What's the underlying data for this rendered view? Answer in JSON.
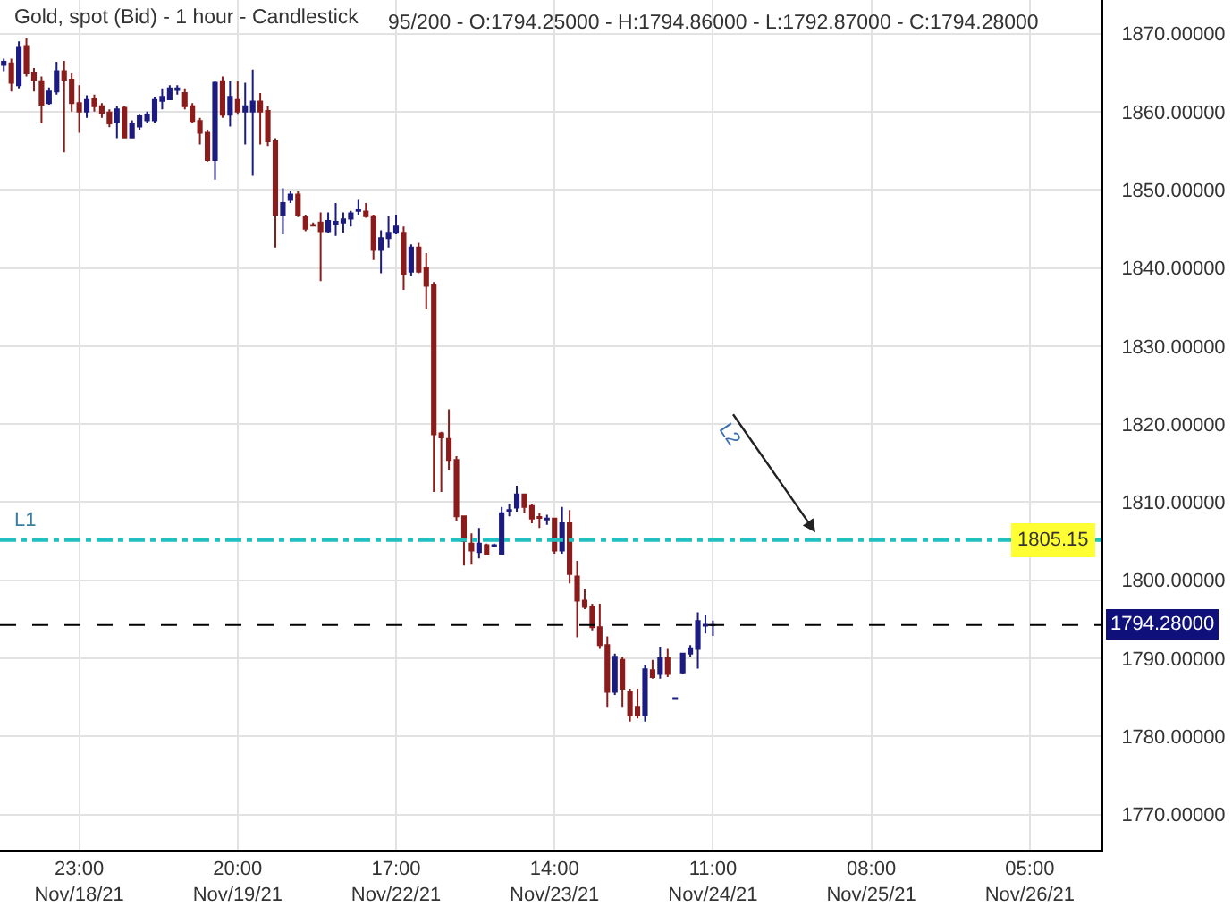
{
  "chart_data": {
    "type": "candlestick",
    "title": "Gold, spot (Bid) - 1 hour - Candlestick",
    "subtitle": "95/200 - O:1794.25000 - H:1794.86000 - L:1792.87000 - C:1794.28000",
    "ohlc": [
      [
        1866.0,
        1866.8,
        1865.2,
        1866.4
      ],
      [
        1866.2,
        1866.8,
        1862.6,
        1863.7
      ],
      [
        1863.4,
        1869.0,
        1863.0,
        1868.3
      ],
      [
        1868.4,
        1869.4,
        1864.5,
        1864.9
      ],
      [
        1864.9,
        1865.6,
        1862.6,
        1864.1
      ],
      [
        1863.9,
        1864.5,
        1858.5,
        1860.9
      ],
      [
        1861.1,
        1863.1,
        1860.9,
        1862.6
      ],
      [
        1862.6,
        1866.4,
        1862.2,
        1865.2
      ],
      [
        1865.2,
        1866.5,
        1854.8,
        1864.1
      ],
      [
        1864.1,
        1864.9,
        1860.0,
        1861.1
      ],
      [
        1861.1,
        1863.4,
        1857.3,
        1860.0
      ],
      [
        1860.0,
        1862.1,
        1859.2,
        1861.5
      ],
      [
        1861.6,
        1862.2,
        1860.0,
        1860.7
      ],
      [
        1860.7,
        1861.1,
        1859.2,
        1859.8
      ],
      [
        1859.9,
        1860.3,
        1858.0,
        1858.5
      ],
      [
        1858.6,
        1860.7,
        1856.6,
        1860.3
      ],
      [
        1860.5,
        1860.7,
        1856.6,
        1856.7
      ],
      [
        1856.7,
        1858.9,
        1856.6,
        1858.5
      ],
      [
        1858.1,
        1859.6,
        1857.7,
        1859.4
      ],
      [
        1858.9,
        1860.0,
        1858.5,
        1859.6
      ],
      [
        1858.9,
        1861.9,
        1858.6,
        1861.5
      ],
      [
        1861.4,
        1863.0,
        1860.3,
        1861.9
      ],
      [
        1861.6,
        1863.4,
        1861.5,
        1863.0
      ],
      [
        1862.8,
        1863.4,
        1862.2,
        1863.0
      ],
      [
        1862.4,
        1863.0,
        1860.3,
        1860.7
      ],
      [
        1860.7,
        1861.1,
        1858.5,
        1858.8
      ],
      [
        1858.8,
        1859.2,
        1855.8,
        1857.3
      ],
      [
        1857.3,
        1857.7,
        1853.6,
        1853.8
      ],
      [
        1853.8,
        1863.9,
        1851.3,
        1863.7
      ],
      [
        1863.9,
        1864.5,
        1859.2,
        1859.6
      ],
      [
        1859.6,
        1863.9,
        1858.1,
        1861.9
      ],
      [
        1861.5,
        1863.9,
        1859.6,
        1860.0
      ],
      [
        1860.0,
        1863.7,
        1855.8,
        1860.7
      ],
      [
        1860.0,
        1865.4,
        1851.8,
        1861.3
      ],
      [
        1861.3,
        1862.4,
        1855.8,
        1860.0
      ],
      [
        1860.1,
        1860.7,
        1855.6,
        1856.2
      ],
      [
        1856.2,
        1856.6,
        1842.6,
        1846.8
      ],
      [
        1846.8,
        1850.2,
        1844.3,
        1848.3
      ],
      [
        1848.7,
        1849.8,
        1848.3,
        1849.4
      ],
      [
        1849.4,
        1849.8,
        1846.5,
        1846.8
      ],
      [
        1846.5,
        1846.8,
        1844.7,
        1845.0
      ],
      [
        1845.5,
        1845.8,
        1845.3,
        1845.4
      ],
      [
        1845.8,
        1847.1,
        1838.3,
        1844.7
      ],
      [
        1844.7,
        1847.1,
        1844.5,
        1846.0
      ],
      [
        1845.6,
        1848.3,
        1844.1,
        1845.9
      ],
      [
        1845.8,
        1847.1,
        1844.5,
        1846.2
      ],
      [
        1846.3,
        1847.3,
        1845.3,
        1847.0
      ],
      [
        1847.3,
        1848.7,
        1846.8,
        1847.4
      ],
      [
        1847.2,
        1848.3,
        1846.4,
        1846.6
      ],
      [
        1846.6,
        1846.8,
        1841.0,
        1842.3
      ],
      [
        1842.3,
        1844.8,
        1839.3,
        1843.8
      ],
      [
        1843.8,
        1846.6,
        1842.6,
        1844.5
      ],
      [
        1844.5,
        1846.8,
        1844.3,
        1845.3
      ],
      [
        1844.5,
        1845.3,
        1837.2,
        1839.2
      ],
      [
        1839.5,
        1843.0,
        1838.9,
        1842.6
      ],
      [
        1842.6,
        1843.2,
        1839.3,
        1839.5
      ],
      [
        1840.0,
        1841.9,
        1834.7,
        1837.7
      ],
      [
        1837.8,
        1838.2,
        1811.3,
        1818.7
      ],
      [
        1818.8,
        1819.0,
        1811.3,
        1818.3
      ],
      [
        1818.1,
        1821.9,
        1814.1,
        1815.4
      ],
      [
        1815.4,
        1815.9,
        1807.6,
        1808.2
      ],
      [
        1808.2,
        1808.3,
        1801.9,
        1805.0
      ],
      [
        1804.7,
        1806.0,
        1802.0,
        1803.8
      ],
      [
        1803.6,
        1806.7,
        1802.8,
        1804.7
      ],
      [
        1804.5,
        1804.7,
        1803.2,
        1803.4
      ],
      [
        1804.4,
        1804.7,
        1804.2,
        1804.5
      ],
      [
        1803.4,
        1809.4,
        1803.4,
        1808.6
      ],
      [
        1808.9,
        1809.8,
        1808.2,
        1809.0
      ],
      [
        1809.3,
        1812.1,
        1808.8,
        1811.0
      ],
      [
        1811.0,
        1811.1,
        1808.6,
        1809.4
      ],
      [
        1809.5,
        1809.8,
        1807.3,
        1807.9
      ],
      [
        1808.1,
        1808.6,
        1806.7,
        1808.0
      ],
      [
        1807.8,
        1808.4,
        1807.1,
        1807.9
      ],
      [
        1807.9,
        1808.0,
        1803.4,
        1803.8
      ],
      [
        1803.8,
        1809.4,
        1803.4,
        1807.3
      ],
      [
        1807.3,
        1809.0,
        1799.6,
        1800.8
      ],
      [
        1800.5,
        1802.5,
        1792.7,
        1797.4
      ],
      [
        1797.4,
        1798.9,
        1796.3,
        1796.6
      ],
      [
        1796.6,
        1797.0,
        1793.6,
        1794.0
      ],
      [
        1794.0,
        1797.0,
        1791.2,
        1791.7
      ],
      [
        1791.7,
        1792.8,
        1783.8,
        1785.7
      ],
      [
        1785.7,
        1790.6,
        1785.3,
        1790.2
      ],
      [
        1789.8,
        1790.2,
        1783.8,
        1786.1
      ],
      [
        1785.7,
        1786.1,
        1781.9,
        1782.7
      ],
      [
        1783.8,
        1786.1,
        1782.3,
        1782.7
      ],
      [
        1782.7,
        1789.1,
        1781.9,
        1788.6
      ],
      [
        1788.5,
        1789.8,
        1787.4,
        1787.6
      ],
      [
        1788.0,
        1791.5,
        1787.4,
        1790.0
      ],
      [
        1790.0,
        1791.2,
        1787.6,
        1788.0
      ],
      [
        1784.8,
        1784.9,
        1784.8,
        1784.9
      ],
      [
        1788.2,
        1790.7,
        1788.0,
        1790.6
      ],
      [
        1790.6,
        1791.7,
        1790.2,
        1791.3
      ],
      [
        1791.2,
        1795.9,
        1788.7,
        1794.8
      ],
      [
        1794.2,
        1795.5,
        1793.2,
        1794.3
      ],
      [
        1794.25,
        1794.86,
        1792.87,
        1794.28
      ],
      null,
      null,
      null,
      null,
      null,
      null,
      null,
      null,
      null,
      null,
      null,
      null,
      null,
      null,
      null,
      null,
      null,
      null,
      null,
      null,
      null,
      null,
      null,
      null,
      null,
      null,
      null,
      null,
      null,
      null,
      null,
      null,
      null,
      null,
      null,
      null,
      null,
      null,
      null,
      null,
      null,
      null,
      null,
      null,
      null,
      null,
      null,
      null,
      null,
      null,
      null
    ],
    "colors": [
      "#1c1c80",
      "#8b1c1c",
      "#1c1c80",
      "#8b1c1c",
      "#8b1c1c",
      "#8b1c1c",
      "#1c1c80",
      "#1c1c80",
      "#8b1c1c",
      "#8b1c1c",
      "#8b1c1c",
      "#1c1c80",
      "#8b1c1c",
      "#8b1c1c",
      "#8b1c1c",
      "#1c1c80",
      "#8b1c1c",
      "#1c1c80",
      "#1c1c80",
      "#1c1c80",
      "#1c1c80",
      "#1c1c80",
      "#1c1c80",
      "#1c1c80",
      "#8b1c1c",
      "#8b1c1c",
      "#8b1c1c",
      "#8b1c1c",
      "#1c1c80",
      "#8b1c1c",
      "#1c1c80",
      "#8b1c1c",
      "#1c1c80",
      "#1c1c80",
      "#8b1c1c",
      "#8b1c1c",
      "#8b1c1c",
      "#1c1c80",
      "#1c1c80",
      "#8b1c1c",
      "#8b1c1c",
      "#8b1c1c",
      "#8b1c1c",
      "#1c1c80",
      "#1c1c80",
      "#1c1c80",
      "#1c1c80",
      "#1c1c80",
      "#8b1c1c",
      "#8b1c1c",
      "#1c1c80",
      "#1c1c80",
      "#1c1c80",
      "#8b1c1c",
      "#1c1c80",
      "#8b1c1c",
      "#8b1c1c",
      "#8b1c1c",
      "#8b1c1c",
      "#8b1c1c",
      "#8b1c1c",
      "#8b1c1c",
      "#8b1c1c",
      "#1c1c80",
      "#8b1c1c",
      "#1c1c80",
      "#1c1c80",
      "#1c1c80",
      "#1c1c80",
      "#8b1c1c",
      "#8b1c1c",
      "#8b1c1c",
      "#1c1c80",
      "#8b1c1c",
      "#1c1c80",
      "#8b1c1c",
      "#8b1c1c",
      "#8b1c1c",
      "#8b1c1c",
      "#8b1c1c",
      "#8b1c1c",
      "#1c1c80",
      "#8b1c1c",
      "#8b1c1c",
      "#8b1c1c",
      "#1c1c80",
      "#8b1c1c",
      "#1c1c80",
      "#8b1c1c",
      "#1c1c80",
      "#1c1c80",
      "#1c1c80",
      "#1c1c80",
      "#1c1c80",
      "#1c1c80",
      null,
      null,
      null,
      null,
      null,
      null,
      null,
      null,
      null,
      null,
      null,
      null,
      null,
      null,
      null,
      null,
      null,
      null,
      null,
      null,
      null,
      null,
      null,
      null,
      null,
      null,
      null,
      null,
      null,
      null,
      null,
      null,
      null,
      null,
      null,
      null,
      null,
      null,
      null,
      null,
      null,
      null,
      null,
      null,
      null,
      null,
      null,
      null,
      null,
      null,
      null
    ],
    "categories": [
      null,
      null,
      null,
      null,
      null,
      null,
      null,
      null,
      null,
      null,
      "23:00\nNov/18/21",
      null,
      null,
      null,
      null,
      null,
      null,
      null,
      null,
      null,
      null,
      null,
      null,
      null,
      null,
      null,
      null,
      null,
      null,
      null,
      null,
      "20:00\nNov/19/21",
      null,
      null,
      null,
      null,
      null,
      null,
      null,
      null,
      null,
      null,
      null,
      null,
      null,
      null,
      null,
      null,
      null,
      null,
      null,
      null,
      "17:00\nNov/22/21",
      null,
      null,
      null,
      null,
      null,
      null,
      null,
      null,
      null,
      null,
      null,
      null,
      null,
      null,
      null,
      null,
      null,
      null,
      null,
      null,
      "14:00\nNov/23/21",
      null,
      null,
      null,
      null,
      null,
      null,
      null,
      null,
      null,
      null,
      null,
      null,
      null,
      null,
      null,
      null,
      null,
      null,
      null,
      null,
      "11:00\nNov/24/21",
      null,
      null,
      null,
      null,
      null,
      null,
      null,
      null,
      null,
      null,
      null,
      null,
      null,
      null,
      null,
      null,
      null,
      null,
      null,
      null,
      "08:00\nNov/25/21",
      null,
      null,
      null,
      null,
      null,
      null,
      null,
      null,
      null,
      null,
      null,
      null,
      null,
      null,
      null,
      null,
      null,
      null,
      null,
      null,
      "05:00\nNov/26/21",
      null,
      null,
      null,
      null,
      null,
      null,
      null,
      null,
      null
    ],
    "ylim": [
      1765.5,
      1874.3
    ],
    "yticks": [
      {
        "value": 1770,
        "label": "1770.00000"
      },
      {
        "value": 1780,
        "label": "1780.00000"
      },
      {
        "value": 1790,
        "label": "1790.00000"
      },
      {
        "value": 1800,
        "label": "1800.00000"
      },
      {
        "value": 1810,
        "label": "1810.00000"
      },
      {
        "value": 1820,
        "label": "1820.00000"
      },
      {
        "value": 1830,
        "label": "1830.00000"
      },
      {
        "value": 1840,
        "label": "1840.00000"
      },
      {
        "value": 1850,
        "label": "1850.00000"
      },
      {
        "value": 1860,
        "label": "1860.00000"
      },
      {
        "value": 1870,
        "label": "1870.00000"
      }
    ],
    "ref_lines": [
      {
        "axis": "y",
        "value": 1805.15,
        "label": "L1",
        "color": "#20c0c0",
        "line_style": "dashdot"
      },
      {
        "axis": "y",
        "value": 1794.28,
        "label": "1794.28000",
        "color": "#000000",
        "line_style": "dashed"
      }
    ],
    "annotations": [
      {
        "text": "1805.15",
        "y": 1805.15
      },
      "L2"
    ],
    "grid": true,
    "legend": false
  }
}
